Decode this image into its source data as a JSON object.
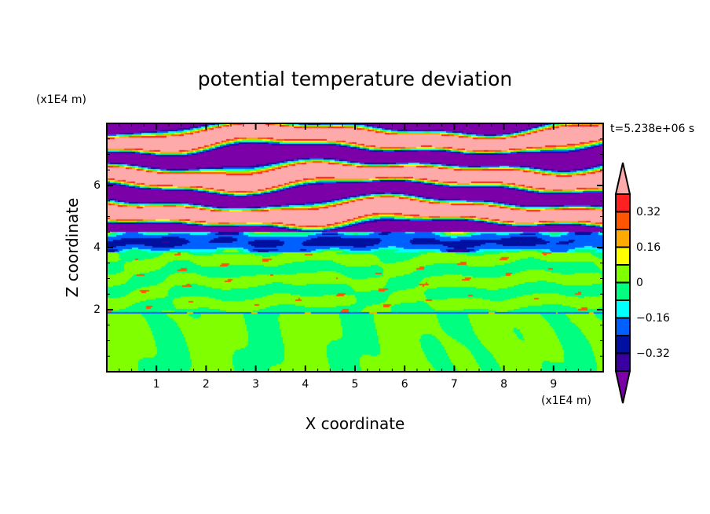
{
  "chart_data": {
    "type": "heatmap",
    "title": "potential temperature deviation",
    "xlabel": "X coordinate",
    "ylabel": "Z coordinate",
    "x_unit_label": "(x1E4 m)",
    "y_unit_label": "(x1E4 m)",
    "time_label": "t=5.238e+06 s",
    "xlim": [
      0,
      10
    ],
    "ylim": [
      0,
      8
    ],
    "x_ticks": [
      "1",
      "2",
      "3",
      "4",
      "5",
      "6",
      "7",
      "8",
      "9"
    ],
    "y_ticks": [
      "2",
      "4",
      "6"
    ],
    "colorbar": {
      "levels": [
        -0.4,
        -0.32,
        -0.24,
        -0.16,
        -0.08,
        0,
        0.08,
        0.16,
        0.24,
        0.32,
        0.4
      ],
      "labels": [
        "0.32",
        "0.16",
        "0",
        "-0.16",
        "-0.32"
      ],
      "colors": [
        "#7b00a8",
        "#3a009f",
        "#0010a0",
        "#0060ff",
        "#00ffff",
        "#00ff80",
        "#80ff00",
        "#ffff00",
        "#ffaa00",
        "#ff5500",
        "#ff2020",
        "#ffaaaa"
      ],
      "extend": "both"
    },
    "description_regions": [
      "z>4.5 alternating strong positive/negative layers",
      "3.8<z<4.5 negative band",
      "z<3.8 near-zero with convective cells below z=2"
    ]
  }
}
